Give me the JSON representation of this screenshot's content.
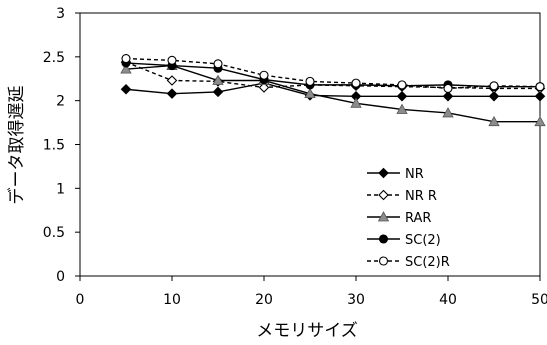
{
  "chart_data": {
    "type": "line",
    "title": "",
    "xlabel": "メモリサイズ",
    "ylabel": "データ取得遅延",
    "xlim": [
      0,
      50
    ],
    "ylim": [
      0,
      3
    ],
    "x_ticks": [
      0,
      10,
      20,
      30,
      40,
      50
    ],
    "y_ticks": [
      0,
      0.5,
      1,
      1.5,
      2,
      2.5,
      3
    ],
    "y_tick_labels": [
      "0",
      "0.5",
      "1",
      "1.5",
      "2",
      "2.5",
      "3"
    ],
    "grid": false,
    "legend_position": "right-center",
    "x": [
      5,
      10,
      15,
      20,
      25,
      30,
      35,
      40,
      45,
      50
    ],
    "series": [
      {
        "name": "NR",
        "line_style": "solid",
        "marker": "filled-diamond",
        "color": "#000000",
        "values": [
          2.13,
          2.08,
          2.1,
          2.2,
          2.06,
          2.05,
          2.05,
          2.05,
          2.05,
          2.05
        ]
      },
      {
        "name": "NR R",
        "line_style": "dashed",
        "marker": "open-diamond",
        "color": "#000000",
        "values": [
          2.44,
          2.23,
          2.22,
          2.15,
          2.18,
          2.17,
          2.16,
          2.15,
          2.14,
          2.14
        ]
      },
      {
        "name": "RAR",
        "line_style": "solid",
        "marker": "gray-triangle",
        "color": "#000000",
        "values": [
          2.36,
          2.4,
          2.23,
          2.23,
          2.08,
          1.97,
          1.9,
          1.86,
          1.76,
          1.76
        ]
      },
      {
        "name": "SC(2)",
        "line_style": "solid",
        "marker": "filled-circle",
        "color": "#000000",
        "values": [
          2.43,
          2.4,
          2.37,
          2.24,
          2.18,
          2.18,
          2.17,
          2.18,
          2.16,
          2.16
        ]
      },
      {
        "name": "SC(2)R",
        "line_style": "dashed",
        "marker": "open-circle",
        "color": "#000000",
        "values": [
          2.48,
          2.46,
          2.42,
          2.29,
          2.22,
          2.2,
          2.18,
          2.14,
          2.17,
          2.16
        ]
      }
    ]
  }
}
